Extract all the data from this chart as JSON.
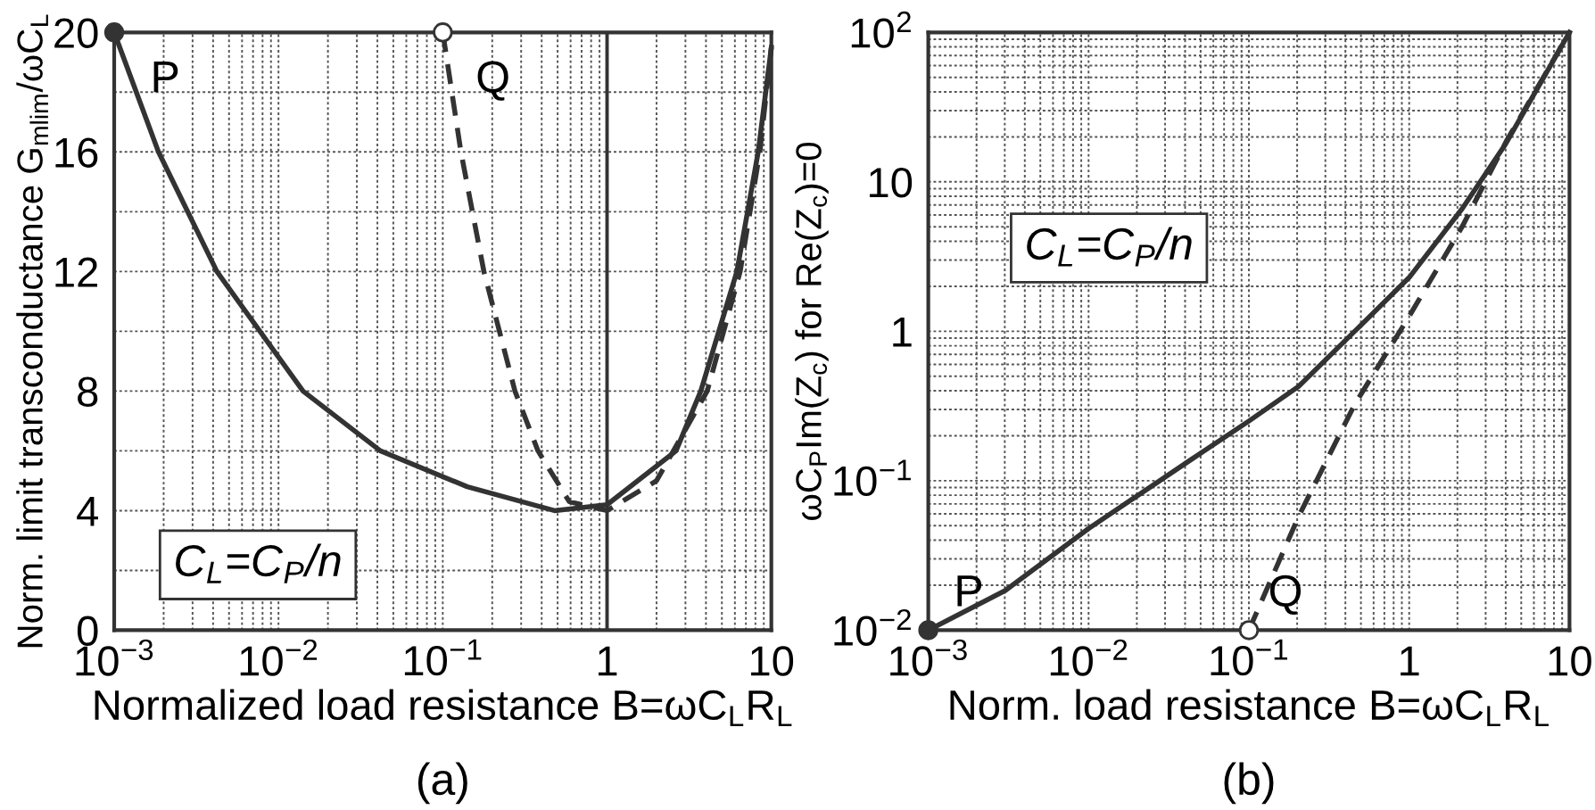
{
  "chart_data": [
    {
      "type": "line",
      "title": "(a)",
      "xlabel": "Normalized load resistance B=ωC$_{L}$R$_{L}$",
      "ylabel": "Norm. limit transconductance G$_{mlim}$/ωC$_{L}$",
      "log": "x",
      "xlim": [
        0.001,
        10
      ],
      "xticks": [
        {
          "value": 0.001,
          "label": "10$^{−3}$"
        },
        {
          "value": 0.01,
          "label": "10$^{−2}$"
        },
        {
          "value": 0.1,
          "label": "10$^{−1}$"
        },
        1,
        10
      ],
      "ylim": [
        0,
        20
      ],
      "yticks": [
        0,
        4,
        8,
        12,
        16,
        20
      ],
      "grid": true,
      "ref_lines": [
        {
          "axis": "x",
          "value": 1,
          "color": "#333333"
        }
      ],
      "annotations": [
        "P",
        "Q",
        "C$_{L}$=C$_{P}$/n"
      ],
      "series": [
        {
          "line_style": "solid",
          "color": "#333333",
          "x": [
            0.001,
            0.00186,
            0.00422,
            0.0141,
            0.0417,
            0.141,
            0.479,
            1,
            2.63,
            3.72,
            6.17,
            8.32,
            10
          ],
          "values": [
            20,
            16,
            12,
            8,
            6,
            4.8,
            4,
            4.2,
            6,
            8,
            12,
            16,
            19.5
          ]
        },
        {
          "line_style": "dashed",
          "color": "#333333",
          "x": [
            0.1,
            0.129,
            0.178,
            0.275,
            0.38,
            0.589,
            1,
            2.0,
            4.07,
            6.46,
            8.51,
            10
          ],
          "values": [
            20,
            16,
            12,
            8,
            6,
            4.3,
            4,
            5,
            8,
            12,
            16,
            19.5
          ]
        },
        {
          "type": "scatter",
          "marker": "circle",
          "color": "#333333",
          "x": [
            0.001
          ],
          "values": [
            20
          ]
        },
        {
          "type": "scatter",
          "marker": "circle",
          "color": "#ffffff",
          "x": [
            0.1
          ],
          "values": [
            20
          ]
        }
      ]
    },
    {
      "type": "line",
      "title": "(b)",
      "xlabel": "Norm. load resistance B=ωC$_{L}$R$_{L}$",
      "ylabel": "ωC$_{P}$Im(Z$_{c}$) for Re(Z$_{c}$)=0",
      "log": "xy",
      "xlim": [
        0.001,
        10
      ],
      "xticks": [
        {
          "value": 0.001,
          "label": "10$^{−3}$"
        },
        {
          "value": 0.01,
          "label": "10$^{−2}$"
        },
        {
          "value": 0.1,
          "label": "10$^{−1}$"
        },
        1,
        10
      ],
      "ylim": [
        0.01,
        100
      ],
      "yticks": [
        {
          "value": 0.01,
          "label": "10$^{−2}$"
        },
        {
          "value": 0.1,
          "label": "10$^{−1}$"
        },
        1,
        10,
        {
          "value": 100,
          "label": "10$^{2}$"
        }
      ],
      "grid": true,
      "annotations": [
        "P",
        "Q",
        "C$_{L}$=C$_{P}$/n"
      ],
      "series": [
        {
          "line_style": "solid",
          "color": "#333333",
          "x": [
            0.001,
            0.00302,
            0.01,
            0.0447,
            0.1,
            0.204,
            0.457,
            1,
            2.14,
            3.98,
            10
          ],
          "values": [
            0.01,
            0.0184,
            0.0479,
            0.141,
            0.251,
            0.427,
            1,
            2.29,
            6.61,
            17.8,
            100
          ]
        },
        {
          "line_style": "dashed",
          "color": "#333333",
          "x": [
            0.1,
            0.204,
            0.457,
            1,
            2.14,
            4.07,
            10
          ],
          "values": [
            0.01,
            0.0575,
            0.324,
            1.26,
            5.01,
            19,
            100
          ]
        },
        {
          "type": "scatter",
          "marker": "circle",
          "color": "#333333",
          "x": [
            0.001
          ],
          "values": [
            0.01
          ]
        },
        {
          "type": "scatter",
          "marker": "circle",
          "color": "#ffffff",
          "x": [
            0.1
          ],
          "values": [
            0.01
          ]
        }
      ]
    }
  ]
}
